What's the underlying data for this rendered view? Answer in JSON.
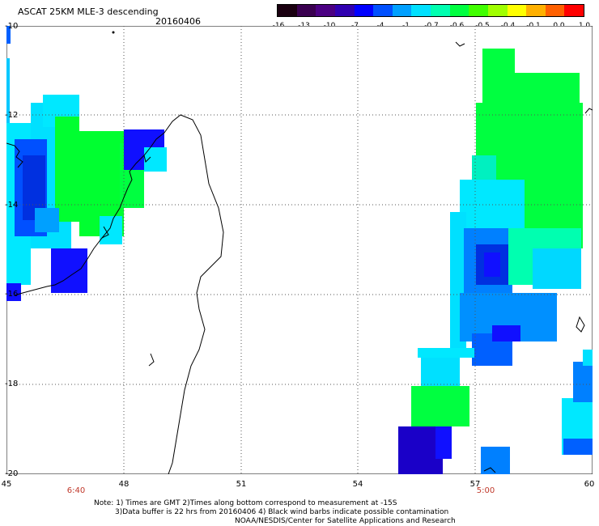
{
  "title": "ASCAT 25KM MLE-3 descending",
  "date": "20160406",
  "colorbar": {
    "tick_labels": [
      "-16",
      "-13",
      "-10",
      "-7",
      "-4",
      "-1",
      "-0.7",
      "-0.6",
      "-0.5",
      "-0.4",
      "-0.1",
      "0.0",
      "1.0"
    ],
    "colors": [
      "#1a0010",
      "#3a0050",
      "#4b0082",
      "#3000b0",
      "#0000ff",
      "#0050ff",
      "#00a0ff",
      "#00e0ff",
      "#00ffb0",
      "#00ff40",
      "#40ff00",
      "#a0ff00",
      "#ffff00",
      "#ffb000",
      "#ff6000",
      "#ff0000"
    ]
  },
  "axes": {
    "y_labels": [
      "-10",
      "-12",
      "-14",
      "-16",
      "-18",
      "-20"
    ],
    "x_labels": [
      "45",
      "48",
      "51",
      "54",
      "57",
      "60"
    ],
    "time_labels": [
      "6:40",
      "5:00"
    ]
  },
  "notes": [
    "Note: 1) Times are GMT 2)Times along bottom correspond to measurement at -15S",
    "3)Data buffer is 22 hrs from 20160406 4) Black wind barbs indicate possible contamination",
    "NOAA/NESDIS/Center for Satellite Applications and Research"
  ],
  "legend_colors": {
    "green": "#00ff40",
    "cyan": "#00e8ff",
    "blue": "#0060ff",
    "deep_blue": "#1010ff",
    "indigo": "#3a00c0"
  }
}
